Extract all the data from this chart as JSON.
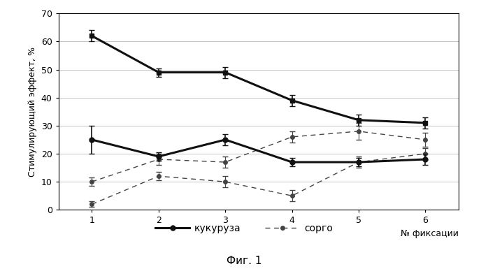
{
  "x": [
    1,
    2,
    3,
    4,
    5,
    6
  ],
  "kukuruza_upper": [
    62,
    49,
    49,
    39,
    32,
    31
  ],
  "kukuruza_upper_err": [
    2,
    1.5,
    2,
    2,
    2,
    2
  ],
  "kukuruza_lower": [
    25,
    19,
    25,
    17,
    17,
    18
  ],
  "kukuruza_lower_err": [
    5,
    1.5,
    2,
    1.5,
    1.5,
    2
  ],
  "sorgo_upper": [
    10,
    18,
    17,
    26,
    28,
    25
  ],
  "sorgo_upper_err": [
    1.5,
    2,
    2,
    2,
    3,
    2.5
  ],
  "sorgo_lower": [
    2,
    12,
    10,
    5,
    17,
    20
  ],
  "sorgo_lower_err": [
    1,
    1.5,
    2,
    2,
    2,
    2
  ],
  "ylabel": "Стимулирующий эффект, %",
  "xlabel": "№ фиксации",
  "ylim": [
    0,
    70
  ],
  "figtext": "Фиг. 1",
  "legend_kukuruza": "кукуруза",
  "legend_sorgo": "сорго",
  "solid_color": "#111111",
  "dashed_color": "#444444"
}
